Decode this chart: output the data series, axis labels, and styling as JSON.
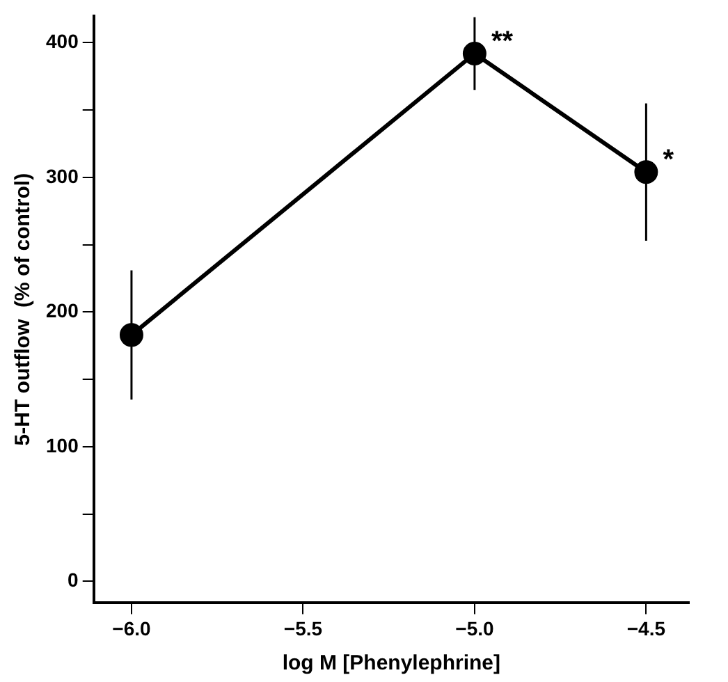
{
  "chart_data": {
    "type": "line",
    "xlabel": "log M [Phenylephrine]",
    "ylabel": "5-HT outflow  (% of control)",
    "x": [
      -6.0,
      -5.0,
      -4.5
    ],
    "series": [
      {
        "color": "#000000",
        "values": [
          183,
          392,
          304
        ],
        "errors": [
          48,
          27,
          51
        ]
      }
    ],
    "xlim": [
      -6.11,
      -4.375
    ],
    "xticks": [
      {
        "value": -6,
        "label": "−6.0"
      },
      {
        "value": -5.5,
        "label": "−5.5"
      },
      {
        "value": -5,
        "label": "−5.0"
      },
      {
        "value": -4.5,
        "label": "−4.5"
      }
    ],
    "ylim": [
      -16,
      420
    ],
    "yticks": [
      0,
      {
        "value": 50,
        "label": null
      },
      100,
      {
        "value": 150,
        "label": null
      },
      200,
      {
        "value": 250,
        "label": null
      },
      300,
      {
        "value": 350,
        "label": null
      },
      400
    ],
    "annotations": [
      {
        "text": "**",
        "x": -5.0,
        "y": 392
      },
      {
        "text": "*",
        "x": -4.5,
        "y": 304
      }
    ],
    "grid": false,
    "legend": false,
    "marker": "circle",
    "line_style": "solid"
  }
}
